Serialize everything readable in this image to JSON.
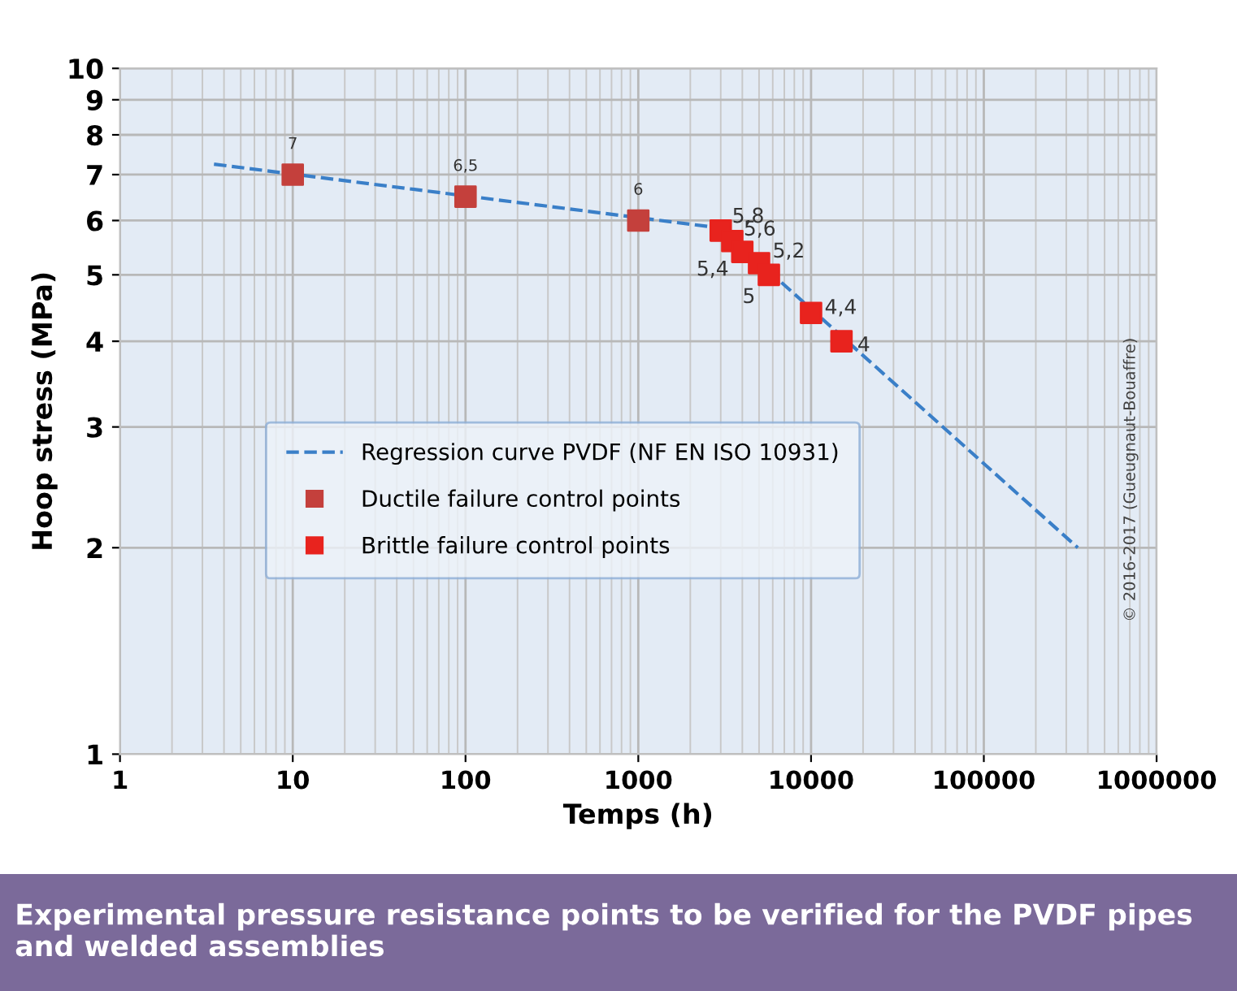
{
  "chart_data": {
    "type": "scatter",
    "xlabel": "Temps (h)",
    "ylabel": "Hoop stress (MPa)",
    "log": "xy",
    "xlim": [
      1,
      1000000
    ],
    "ylim": [
      1,
      10
    ],
    "xticks": [
      1,
      10,
      100,
      1000,
      10000,
      100000,
      1000000
    ],
    "yticks": [
      1,
      2,
      3,
      4,
      5,
      6,
      7,
      8,
      9,
      10
    ],
    "grid": true,
    "legend": "left",
    "marker": "square",
    "series": [
      {
        "name": "Regression curve PVDF (NF EN ISO 10931)",
        "type": "line",
        "line_style": "dashed",
        "marker": "none",
        "color": "#3a7fc8",
        "x": [
          3.5,
          3000,
          350000
        ],
        "values": [
          7.25,
          5.85,
          2.0
        ]
      },
      {
        "name": "Ductile failure control points",
        "color": "#c4403c",
        "x": [
          10,
          100,
          1000
        ],
        "values": [
          7,
          6.5,
          6
        ],
        "value_labels": [
          "7",
          "6,5",
          "6"
        ]
      },
      {
        "name": "Brittle failure control points",
        "color": "#e8231e",
        "x": [
          3000,
          3500,
          4000,
          5000,
          5700,
          10000,
          15000
        ],
        "values": [
          5.8,
          5.6,
          5.4,
          5.2,
          5,
          4.4,
          4
        ],
        "value_labels": [
          "5,8",
          "5,6",
          "5,4",
          "5,2",
          "5",
          "4,4",
          "4"
        ]
      }
    ],
    "annotations": [
      "© 2016-2017 (Gueugnaut-Bouaffre)",
      "Experimental pressure resistance points to be verified for the PVDF pipes and welded assemblies"
    ]
  }
}
